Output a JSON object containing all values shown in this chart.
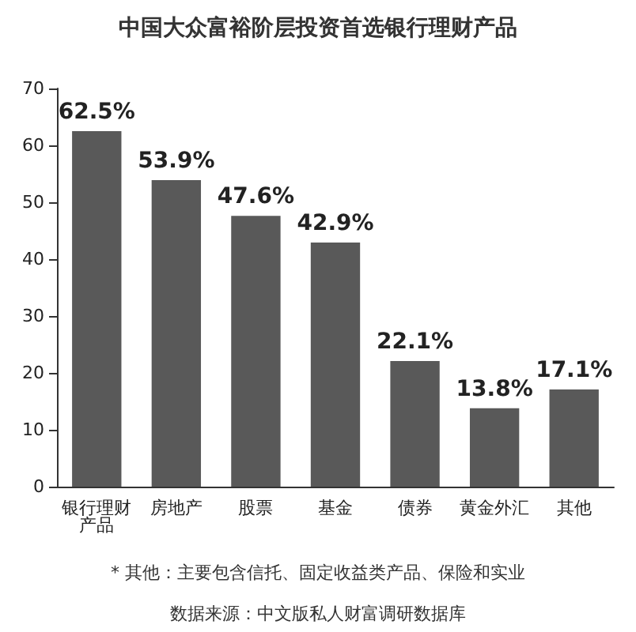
{
  "chart_data": {
    "type": "bar",
    "title": "中国大众富裕阶层投资首选银行理财产品",
    "categories": [
      "银行理财产品",
      "房地产",
      "股票",
      "基金",
      "债券",
      "黄金外汇",
      "其他"
    ],
    "values": [
      62.5,
      53.9,
      47.6,
      42.9,
      22.1,
      13.8,
      17.1
    ],
    "value_labels": [
      "62.5%",
      "53.9%",
      "47.6%",
      "42.9%",
      "22.1%",
      "13.8%",
      "17.1%"
    ],
    "color": "#595959",
    "ylim": [
      0,
      70
    ],
    "yticks": [
      0,
      10,
      20,
      30,
      40,
      50,
      60,
      70
    ],
    "annotations": [
      "* 其他：主要包含信托、固定收益类产品、保险和实业",
      "数据来源：中文版私人财富调研数据库"
    ]
  }
}
